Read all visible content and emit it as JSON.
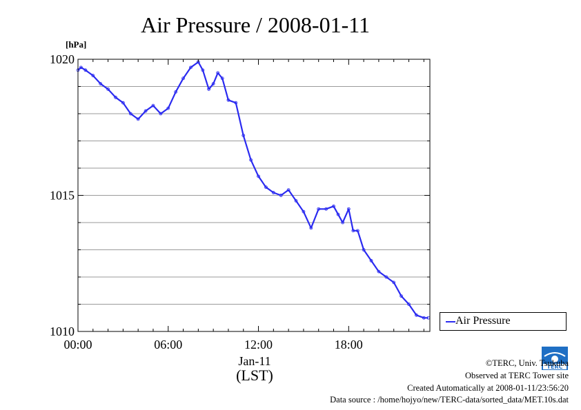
{
  "chart_data": {
    "type": "line",
    "title": "Air Pressure / 2008-01-11",
    "ylabel": "[hPa]",
    "xlabel_date": "Jan-11",
    "xlabel_zone": "(LST)",
    "ylim": [
      1010,
      1020
    ],
    "xlim": [
      0,
      23.4
    ],
    "y_major_ticks": [
      1010,
      1015,
      1020
    ],
    "y_minor_ticks": [
      1011,
      1012,
      1013,
      1014,
      1016,
      1017,
      1018,
      1019
    ],
    "x_ticks": [
      {
        "value": 0,
        "label": "00:00"
      },
      {
        "value": 6,
        "label": "06:00"
      },
      {
        "value": 12,
        "label": "12:00"
      },
      {
        "value": 18,
        "label": "18:00"
      }
    ],
    "grid": true,
    "legend_position": "right",
    "series": [
      {
        "name": "Air Pressure",
        "color": "#2a2af0",
        "x": [
          0,
          0.2,
          0.5,
          1.0,
          1.5,
          2.0,
          2.5,
          3.0,
          3.5,
          4.0,
          4.5,
          5.0,
          5.5,
          6.0,
          6.5,
          7.0,
          7.5,
          8.0,
          8.3,
          8.7,
          9.0,
          9.3,
          9.6,
          10.0,
          10.5,
          11.0,
          11.5,
          12.0,
          12.5,
          13.0,
          13.5,
          14.0,
          14.5,
          15.0,
          15.5,
          16.0,
          16.5,
          17.0,
          17.3,
          17.6,
          18.0,
          18.3,
          18.6,
          19.0,
          19.5,
          20.0,
          20.5,
          21.0,
          21.5,
          22.0,
          22.5,
          23.0,
          23.3
        ],
        "y": [
          1019.6,
          1019.7,
          1019.6,
          1019.4,
          1019.1,
          1018.9,
          1018.6,
          1018.4,
          1018.0,
          1017.8,
          1018.1,
          1018.3,
          1018.0,
          1018.2,
          1018.8,
          1019.3,
          1019.7,
          1019.9,
          1019.6,
          1018.9,
          1019.1,
          1019.5,
          1019.3,
          1018.5,
          1018.4,
          1017.2,
          1016.3,
          1015.7,
          1015.3,
          1015.1,
          1015.0,
          1015.2,
          1014.8,
          1014.4,
          1013.8,
          1014.5,
          1014.5,
          1014.6,
          1014.3,
          1014.0,
          1014.5,
          1013.7,
          1013.7,
          1013.0,
          1012.6,
          1012.2,
          1012.0,
          1011.8,
          1011.3,
          1011.0,
          1010.6,
          1010.5,
          1010.5
        ]
      }
    ]
  },
  "credits": {
    "copyright": "©TERC, Univ. Tsukuba",
    "observed": "Observed at TERC Tower site",
    "created": "Created Automatically at 2008-01-11/23:56:20",
    "source": "Data source : /home/hojyo/new/TERC-data/sorted_data/MET.10s.dat",
    "logo_text": "TERC"
  }
}
